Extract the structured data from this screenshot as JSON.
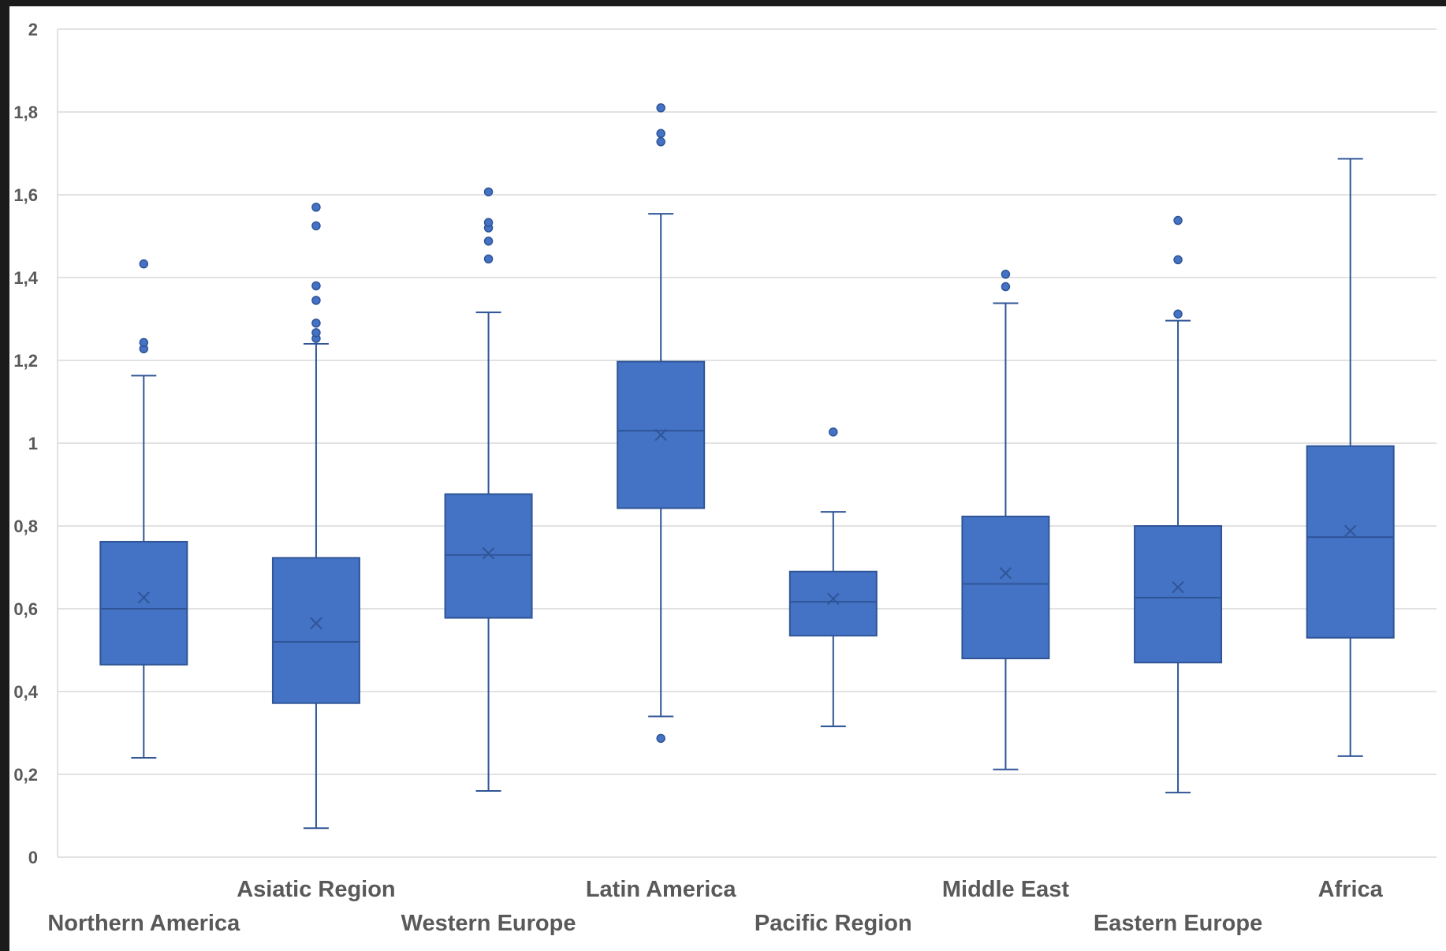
{
  "chart_data": {
    "type": "boxplot",
    "title": "",
    "xlabel": "",
    "ylabel": "",
    "ylim": [
      0,
      2
    ],
    "yticks": [
      "0",
      "0,2",
      "0,4",
      "0,6",
      "0,8",
      "1",
      "1,2",
      "1,4",
      "1,6",
      "1,8",
      "2"
    ],
    "grid": true,
    "legend": "none",
    "colors": {
      "box": "#4472c4",
      "border": "#2f5597",
      "grid": "#d9d9d9",
      "text": "#595959"
    },
    "categories": [
      "Northern America",
      "Asiatic Region",
      "Western Europe",
      "Latin America",
      "Pacific Region",
      "Middle East",
      "Eastern Europe",
      "Africa"
    ],
    "boxes": [
      {
        "category": "Northern America",
        "min": 0.24,
        "q1": 0.465,
        "median": 0.6,
        "q3": 0.762,
        "max": 1.163,
        "mean": 0.627,
        "outliers": [
          1.228,
          1.243,
          1.433
        ]
      },
      {
        "category": "Asiatic Region",
        "min": 0.07,
        "q1": 0.372,
        "median": 0.52,
        "q3": 0.723,
        "max": 1.24,
        "mean": 0.565,
        "outliers": [
          1.253,
          1.267,
          1.29,
          1.345,
          1.38,
          1.525,
          1.57
        ]
      },
      {
        "category": "Western Europe",
        "min": 0.16,
        "q1": 0.578,
        "median": 0.73,
        "q3": 0.877,
        "max": 1.316,
        "mean": 0.734,
        "outliers": [
          1.445,
          1.488,
          1.52,
          1.533,
          1.607
        ]
      },
      {
        "category": "Latin America",
        "min": 0.34,
        "q1": 0.843,
        "median": 1.03,
        "q3": 1.197,
        "max": 1.554,
        "mean": 1.02,
        "outliers": [
          0.287,
          1.728,
          1.748,
          1.81
        ]
      },
      {
        "category": "Pacific Region",
        "min": 0.316,
        "q1": 0.535,
        "median": 0.617,
        "q3": 0.69,
        "max": 0.834,
        "mean": 0.624,
        "outliers": [
          1.027
        ]
      },
      {
        "category": "Middle East",
        "min": 0.212,
        "q1": 0.48,
        "median": 0.66,
        "q3": 0.823,
        "max": 1.338,
        "mean": 0.686,
        "outliers": [
          1.378,
          1.408
        ]
      },
      {
        "category": "Eastern Europe",
        "min": 0.156,
        "q1": 0.47,
        "median": 0.627,
        "q3": 0.8,
        "max": 1.296,
        "mean": 0.652,
        "outliers": [
          1.312,
          1.443,
          1.538
        ]
      },
      {
        "category": "Africa",
        "min": 0.244,
        "q1": 0.53,
        "median": 0.773,
        "q3": 0.993,
        "max": 1.687,
        "mean": 0.788,
        "outliers": []
      }
    ]
  }
}
